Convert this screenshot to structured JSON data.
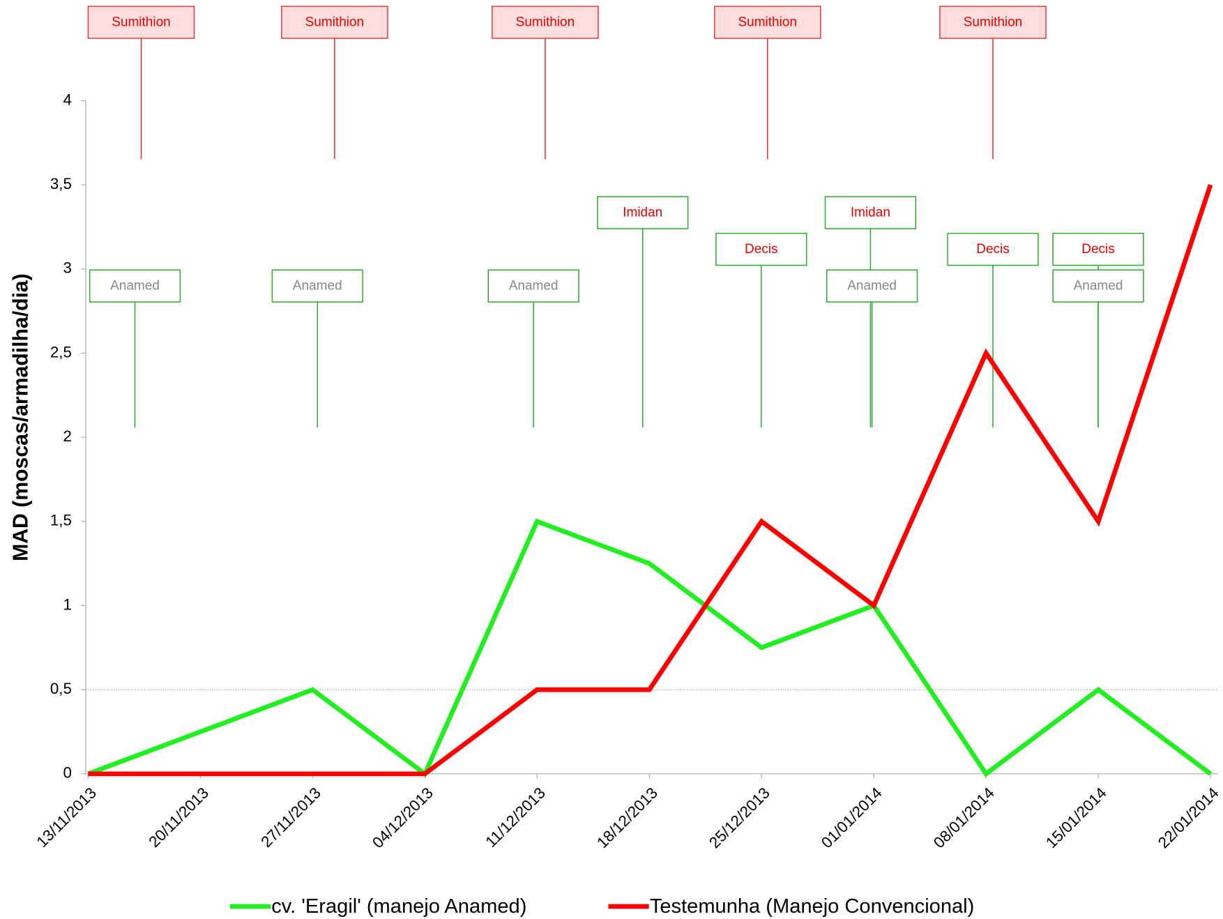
{
  "chart_data": {
    "type": "line",
    "y_label": "MAD (moscas/armadilha/dia)",
    "categories": [
      "13/11/2013",
      "20/11/2013",
      "27/11/2013",
      "04/12/2013",
      "11/12/2013",
      "18/12/2013",
      "25/12/2013",
      "01/01/2014",
      "08/01/2014",
      "15/01/2014",
      "22/01/2014"
    ],
    "series": [
      {
        "name": "cv. 'Eragil' (manejo Anamed)",
        "color": "#22ee22",
        "values": [
          0,
          0.25,
          0.5,
          0,
          1.5,
          1.25,
          0.75,
          1,
          0,
          0.5,
          0
        ]
      },
      {
        "name": "Testemunha (Manejo Convencional)",
        "color": "#ff0000",
        "values": [
          0,
          0,
          0,
          0,
          0.5,
          0.5,
          1.5,
          1,
          2.5,
          1.5,
          3.5
        ]
      }
    ],
    "ylim": [
      0,
      4
    ],
    "yticks": [
      0,
      {
        "value": 0.5,
        "label": "0,5"
      },
      1,
      {
        "value": 1.5,
        "label": "1,5"
      },
      2,
      {
        "value": 2.5,
        "label": "2,5"
      },
      3,
      {
        "value": 3.5,
        "label": "3,5"
      },
      4
    ],
    "reference_line": 0.5,
    "top_annotations": [
      "Sumithion",
      "Sumithion",
      "Sumithion",
      "Sumithion",
      "Sumithion"
    ],
    "annotations": [
      "Anamed",
      "Anamed",
      "Anamed",
      "Imidan",
      "Decis",
      "Imidan",
      "Anamed",
      "Decis",
      "Decis",
      "Anamed"
    ],
    "legend": "bottom"
  }
}
